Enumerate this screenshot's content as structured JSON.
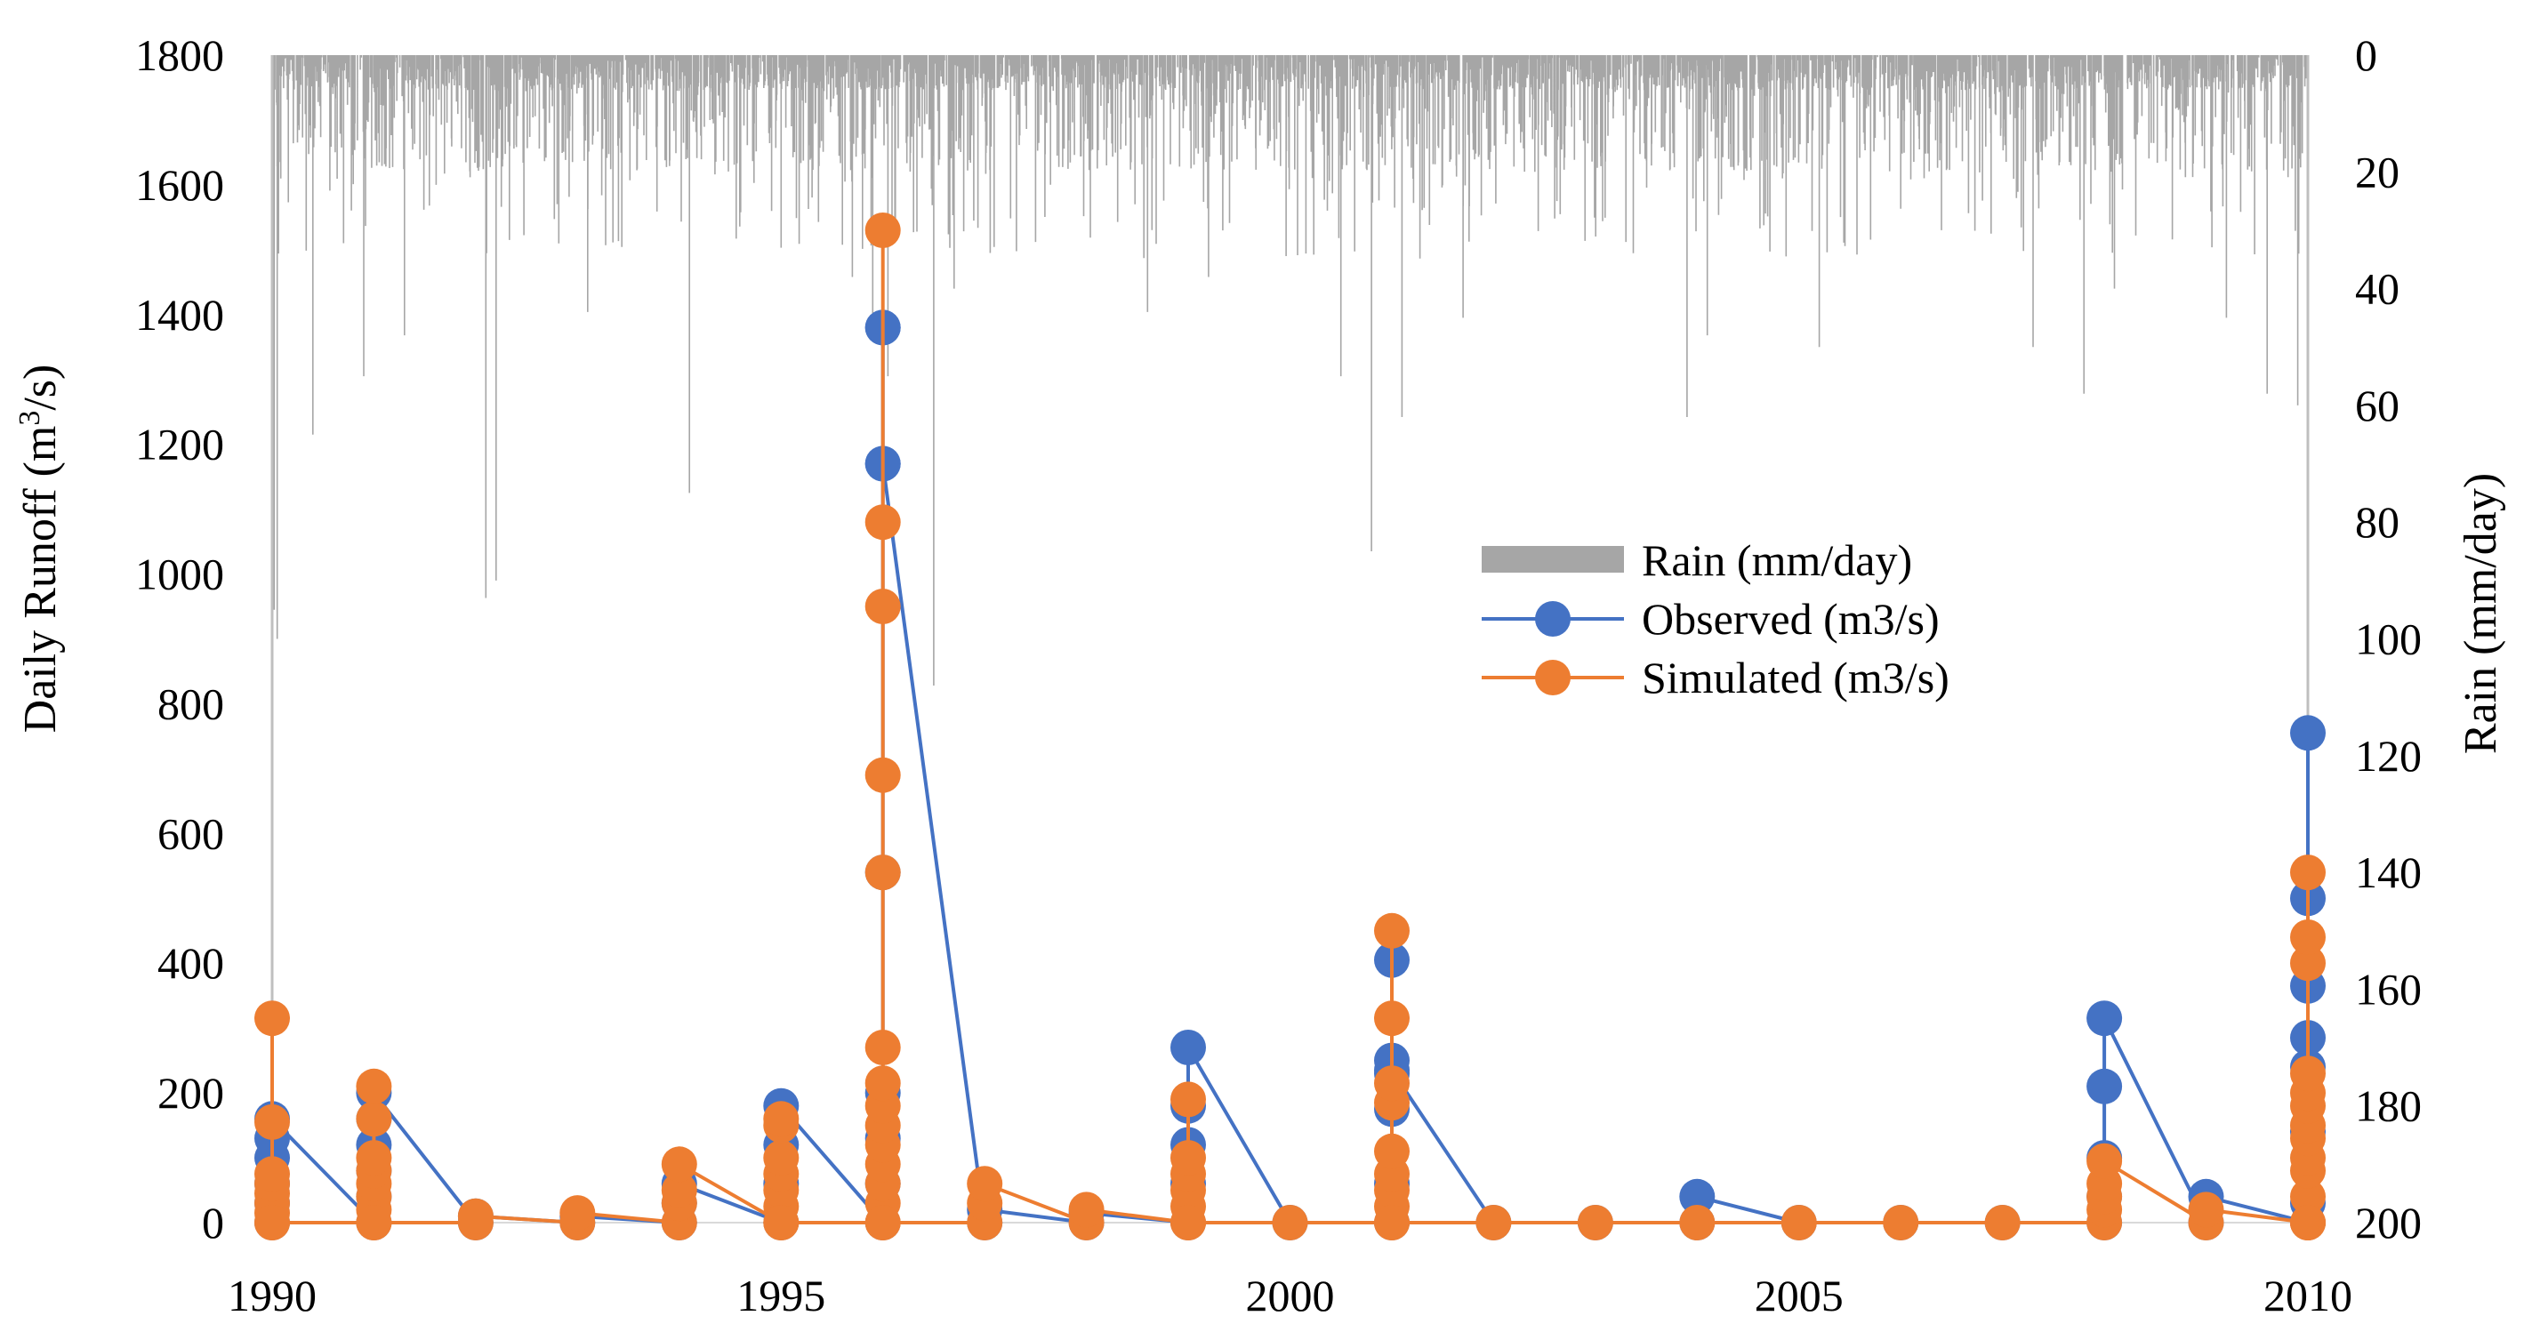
{
  "chart_data": {
    "type": "line",
    "title": "",
    "xlabel": "",
    "ylabel": "Daily Runoff (m³/s)",
    "ylabel_parts": {
      "prefix": "Daily Runoff (m",
      "sup": "3",
      "suffix": "/s)"
    },
    "y2label": "Rain (mm/day)",
    "xlim": [
      1990,
      2010
    ],
    "ylim": [
      0,
      1800
    ],
    "y2lim": [
      0,
      200
    ],
    "y2_inverted": true,
    "x_ticks": [
      "1990",
      "1995",
      "2000",
      "2005",
      "2010"
    ],
    "x_tick_values": [
      1990,
      1995,
      2000,
      2005,
      2010
    ],
    "y_ticks": [
      "0",
      "200",
      "400",
      "600",
      "800",
      "1000",
      "1200",
      "1400",
      "1600",
      "1800"
    ],
    "y_tick_values": [
      0,
      200,
      400,
      600,
      800,
      1000,
      1200,
      1400,
      1600,
      1800
    ],
    "y2_ticks": [
      "0",
      "20",
      "40",
      "60",
      "80",
      "100",
      "120",
      "140",
      "160",
      "180",
      "200"
    ],
    "y2_tick_values": [
      0,
      20,
      40,
      60,
      80,
      100,
      120,
      140,
      160,
      180,
      200
    ],
    "legend": {
      "position": "center-right",
      "entries": [
        "Rain (mm/day)",
        "Observed (m3/s)",
        "Simulated (m3/s)"
      ]
    },
    "colors": {
      "rain": "#a6a6a6",
      "observed": "#4472c4",
      "simulated": "#ed7d31"
    },
    "series": [
      {
        "name": "Observed (m3/s)",
        "x": [
          1990,
          1990,
          1990,
          1990,
          1990,
          1990,
          1991,
          1991,
          1991,
          1991,
          1991,
          1991,
          1992,
          1992,
          1993,
          1993,
          1994,
          1994,
          1994,
          1995,
          1995,
          1995,
          1995,
          1996,
          1996,
          1996,
          1996,
          1996,
          1996,
          1996,
          1996,
          1996,
          1997,
          1997,
          1998,
          1998,
          1999,
          1999,
          1999,
          1999,
          1999,
          2000,
          2001,
          2001,
          2001,
          2001,
          2001,
          2001,
          2001,
          2002,
          2003,
          2004,
          2004,
          2005,
          2006,
          2007,
          2008,
          2008,
          2008,
          2008,
          2008,
          2009,
          2009,
          2010,
          2010,
          2010,
          2010,
          2010,
          2010,
          2010,
          2010
        ],
        "y": [
          0,
          30,
          60,
          100,
          130,
          160,
          0,
          40,
          80,
          120,
          160,
          200,
          0,
          10,
          0,
          10,
          0,
          30,
          60,
          0,
          60,
          120,
          180,
          0,
          60,
          130,
          200,
          540,
          1170,
          1380,
          1380,
          1170,
          0,
          20,
          0,
          15,
          0,
          60,
          120,
          180,
          270,
          0,
          0,
          60,
          175,
          230,
          250,
          405,
          235,
          0,
          0,
          0,
          40,
          0,
          0,
          0,
          0,
          40,
          100,
          210,
          315,
          0,
          40,
          0,
          30,
          140,
          240,
          285,
          365,
          500,
          755
        ]
      },
      {
        "name": "Simulated (m3/s)",
        "x": [
          1990,
          1990,
          1990,
          1990,
          1990,
          1990,
          1990,
          1990,
          1990,
          1991,
          1991,
          1991,
          1991,
          1991,
          1991,
          1991,
          1991,
          1991,
          1992,
          1992,
          1993,
          1993,
          1994,
          1994,
          1994,
          1994,
          1995,
          1995,
          1995,
          1995,
          1995,
          1995,
          1995,
          1995,
          1996,
          1996,
          1996,
          1996,
          1996,
          1996,
          1996,
          1996,
          1996,
          1996,
          1996,
          1996,
          1996,
          1996,
          1996,
          1997,
          1997,
          1997,
          1998,
          1998,
          1999,
          1999,
          1999,
          1999,
          1999,
          1999,
          1999,
          2000,
          2001,
          2001,
          2001,
          2001,
          2001,
          2001,
          2001,
          2001,
          2001,
          2001,
          2002,
          2003,
          2004,
          2005,
          2006,
          2007,
          2008,
          2008,
          2008,
          2008,
          2008,
          2009,
          2009,
          2010,
          2010,
          2010,
          2010,
          2010,
          2010,
          2010,
          2010,
          2010,
          2010,
          2010,
          2010,
          2010,
          2010,
          2010
        ],
        "y": [
          0,
          15,
          30,
          45,
          60,
          75,
          155,
          315,
          0,
          0,
          20,
          40,
          60,
          80,
          100,
          160,
          210,
          0,
          0,
          10,
          0,
          15,
          0,
          30,
          50,
          90,
          0,
          25,
          50,
          75,
          100,
          150,
          160,
          0,
          0,
          30,
          60,
          90,
          120,
          150,
          180,
          215,
          270,
          540,
          690,
          950,
          1080,
          1530,
          0,
          0,
          30,
          60,
          0,
          20,
          0,
          25,
          50,
          75,
          100,
          190,
          0,
          0,
          0,
          25,
          50,
          75,
          110,
          185,
          215,
          315,
          450,
          0,
          0,
          0,
          0,
          0,
          0,
          0,
          0,
          20,
          40,
          60,
          95,
          0,
          20,
          0,
          40,
          80,
          100,
          130,
          150,
          180,
          200,
          230,
          400,
          440,
          540,
          0,
          0,
          0
        ]
      },
      {
        "name": "Rain (mm/day)",
        "type": "bar",
        "x_range": [
          1990,
          2010
        ],
        "description_values_mm": "daily rain, mostly 0-25 mm/day, peaks near 1990.0 (~100), 1992.1 (~93), 1996.5 (~105), 2009.9 (~60)"
      }
    ]
  }
}
